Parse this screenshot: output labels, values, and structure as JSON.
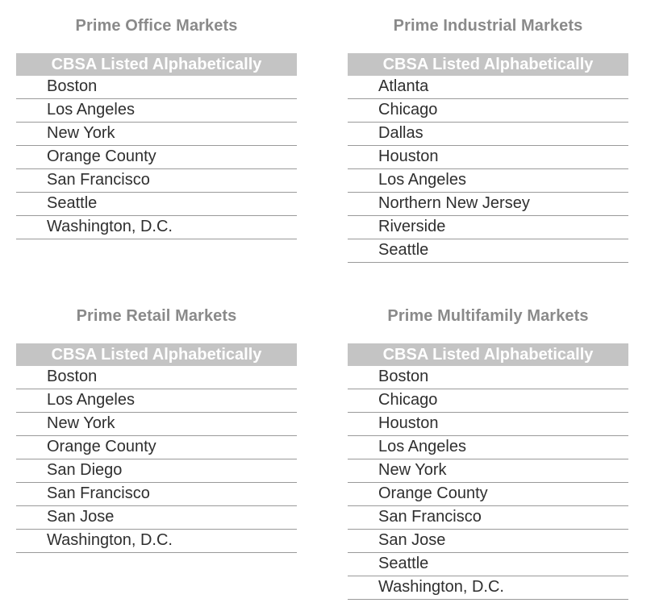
{
  "panels": {
    "office": {
      "title": "Prime Office Markets",
      "header": "CBSA Listed Alphabetically",
      "markets": [
        "Boston",
        "Los Angeles",
        "New York",
        "Orange County",
        "San Francisco",
        "Seattle",
        "Washington, D.C."
      ]
    },
    "industrial": {
      "title": "Prime Industrial Markets",
      "header": "CBSA Listed Alphabetically",
      "markets": [
        "Atlanta",
        "Chicago",
        "Dallas",
        "Houston",
        "Los Angeles",
        "Northern New Jersey",
        "Riverside",
        "Seattle"
      ]
    },
    "retail": {
      "title": "Prime Retail Markets",
      "header": "CBSA Listed Alphabetically",
      "markets": [
        "Boston",
        "Los Angeles",
        "New York",
        "Orange County",
        "San Diego",
        "San Francisco",
        "San Jose",
        "Washington, D.C."
      ]
    },
    "multifamily": {
      "title": "Prime Multifamily Markets",
      "header": "CBSA Listed Alphabetically",
      "markets": [
        "Boston",
        "Chicago",
        "Houston",
        "Los Angeles",
        "New York",
        "Orange County",
        "San Francisco",
        "San Jose",
        "Seattle",
        "Washington, D.C."
      ]
    }
  },
  "colors": {
    "title_text": "#8a8a8a",
    "header_background": "#c4c4c4",
    "header_text": "#ffffff",
    "row_divider": "#9a9a9a",
    "row_text": "#2f2f2f"
  }
}
